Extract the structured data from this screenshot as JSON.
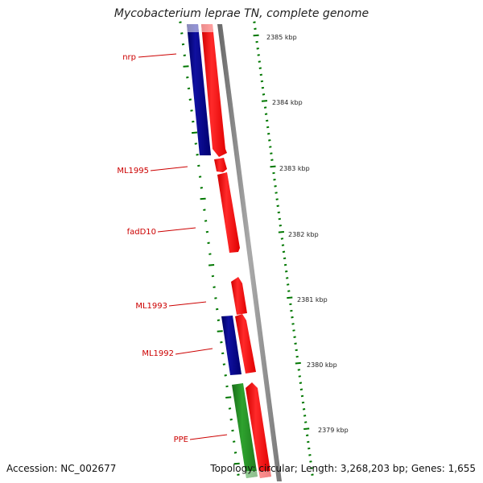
{
  "title": "Mycobacterium leprae TN, complete genome",
  "footer": {
    "accession": "Accession: NC_002677",
    "summary": "Topology: circular; Length: 3,268,203 bp; Genes: 1,655"
  },
  "colors": {
    "backbone": "#7f7f7f",
    "forward_gene": "#ff0000",
    "reverse_gene": "#000080",
    "ppe_gene": "#228b22",
    "gene_label": "#cc0000",
    "tick": "#007700",
    "scale_text": "#222222"
  },
  "scale_labels": [
    "2385 kbp",
    "2384 kbp",
    "2383 kbp",
    "2382 kbp",
    "2381 kbp",
    "2380 kbp",
    "2379 kbp"
  ],
  "gene_labels": [
    "nrp",
    "ML1995",
    "fadD10",
    "ML1993",
    "ML1992",
    "PPE"
  ],
  "features": [
    {
      "name": "nrp",
      "strand": "reverse"
    },
    {
      "name": "nrp",
      "strand": "forward"
    },
    {
      "name": "ML1995",
      "strand": "forward"
    },
    {
      "name": "fadD10",
      "strand": "forward"
    },
    {
      "name": "ML1993",
      "strand": "forward"
    },
    {
      "name": "ML1992",
      "strand": "reverse"
    },
    {
      "name": "ML1992",
      "strand": "forward"
    },
    {
      "name": "PPE",
      "strand": "ppe"
    },
    {
      "name": "PPE",
      "strand": "forward"
    }
  ]
}
